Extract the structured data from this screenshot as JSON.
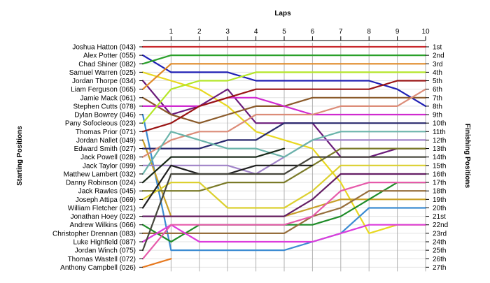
{
  "chart_data": {
    "type": "line",
    "title": "Laps",
    "xlabel": "Laps",
    "ylabel_left": "Starting Positions",
    "ylabel_right": "Finishing Positions",
    "laps": [
      0,
      1,
      2,
      3,
      4,
      5,
      6,
      7,
      8,
      9,
      10
    ],
    "lap_labels": [
      "1",
      "2",
      "3",
      "4",
      "5",
      "6",
      "7",
      "8",
      "9",
      "10"
    ],
    "finishing_labels": [
      "1st",
      "2nd",
      "3rd",
      "4th",
      "5th",
      "6th",
      "7th",
      "8th",
      "9th",
      "10th",
      "11th",
      "12th",
      "13th",
      "14th",
      "15th",
      "16th",
      "17th",
      "18th",
      "19th",
      "20th",
      "21st",
      "22nd",
      "23rd",
      "24th",
      "25th",
      "26th",
      "27th"
    ],
    "grid": true,
    "series": [
      {
        "name": "Joshua Hatton (043)",
        "color": "#c8282d",
        "positions": [
          1,
          1,
          1,
          1,
          1,
          1,
          1,
          1,
          1,
          1,
          1
        ]
      },
      {
        "name": "Alex Potter (055)",
        "color": "#1f1fb4",
        "positions": [
          2,
          4,
          4,
          4,
          5,
          5,
          5,
          5,
          5,
          6,
          8
        ]
      },
      {
        "name": "Chad Shiner (082)",
        "color": "#2aa02a",
        "positions": [
          3,
          2,
          2,
          2,
          2,
          2,
          2,
          2,
          2,
          2,
          2
        ]
      },
      {
        "name": "Samuel Warren (025)",
        "color": "#e8d820",
        "positions": [
          4,
          5,
          6,
          8,
          11,
          12,
          13,
          17,
          23,
          22,
          22
        ]
      },
      {
        "name": "Jordan Thorpe (034)",
        "color": "#6a1b7a",
        "positions": [
          5,
          9,
          8,
          6,
          10,
          10,
          10,
          14,
          14,
          13,
          13
        ]
      },
      {
        "name": "Liam Ferguson (065)",
        "color": "#e08a28",
        "positions": [
          6,
          3,
          3,
          3,
          3,
          3,
          3,
          3,
          3,
          3,
          3
        ]
      },
      {
        "name": "Jamie Mack (061)",
        "color": "#8a5a2a",
        "positions": [
          7,
          9,
          10,
          9,
          8,
          8,
          7,
          7,
          7,
          7,
          7
        ]
      },
      {
        "name": "Stephen Cutts (078)",
        "color": "#d02ad0",
        "positions": [
          8,
          8,
          8,
          7,
          7,
          8,
          9,
          9,
          9,
          9,
          9
        ]
      },
      {
        "name": "Dylan Bowrey (046)",
        "color": "#3c8cd2",
        "positions": [
          9,
          25,
          25,
          25,
          25,
          25,
          24,
          23,
          20,
          20,
          20
        ]
      },
      {
        "name": "Pany Sofocleous (023)",
        "color": "#b4e628",
        "positions": [
          10,
          6,
          5,
          5,
          4,
          4,
          4,
          4,
          4,
          4,
          4
        ]
      },
      {
        "name": "Thomas Prior (071)",
        "color": "#9a1414",
        "positions": [
          11,
          10,
          8,
          7,
          6,
          6,
          6,
          6,
          6,
          5,
          5
        ]
      },
      {
        "name": "Jordan Nallet (049)",
        "color": "#c8a028",
        "positions": [
          12,
          21,
          21,
          21,
          21,
          21,
          20,
          19,
          19,
          19,
          19
        ]
      },
      {
        "name": "Edward Smith (027)",
        "color": "#2a2a6e",
        "positions": [
          13,
          13,
          13,
          12,
          12,
          10,
          10,
          10,
          10,
          10,
          10
        ]
      },
      {
        "name": "Jack Powell (028)",
        "color": "#dc8c78",
        "positions": [
          14,
          12,
          11,
          11,
          9,
          9,
          9,
          8,
          8,
          8,
          6
        ]
      },
      {
        "name": "Jack Taylor (099)",
        "color": "#a082c8",
        "positions": [
          15,
          15,
          15,
          15,
          16,
          14,
          12,
          12,
          12,
          12,
          12
        ]
      },
      {
        "name": "Matthew Lambert (032)",
        "color": "#6ab4aa",
        "positions": [
          16,
          11,
          12,
          13,
          13,
          14,
          12,
          11,
          11,
          11,
          11
        ]
      },
      {
        "name": "Danny Robinson (024)",
        "color": "#182818",
        "positions": [
          17,
          14,
          14,
          14,
          14,
          13,
          null,
          null,
          null,
          null,
          null
        ]
      },
      {
        "name": "Jack Rawles (045)",
        "color": "#7a7a28",
        "positions": [
          18,
          18,
          18,
          17,
          17,
          17,
          15,
          13,
          13,
          13,
          13
        ]
      },
      {
        "name": "Joseph Attipa (069)",
        "color": "#dcd030",
        "positions": [
          19,
          17,
          17,
          20,
          20,
          20,
          18,
          15,
          15,
          15,
          15
        ]
      },
      {
        "name": "William Fletcher (021)",
        "color": "#1e1e1e",
        "positions": [
          20,
          15,
          16,
          16,
          15,
          15,
          15,
          null,
          null,
          null,
          null
        ]
      },
      {
        "name": "Jonathan Hoey (022)",
        "color": "#641e64",
        "positions": [
          21,
          21,
          21,
          21,
          21,
          21,
          19,
          16,
          16,
          16,
          16
        ]
      },
      {
        "name": "Andrew Wilkins (066)",
        "color": "#1e8c28",
        "positions": [
          22,
          24,
          22,
          22,
          22,
          22,
          22,
          21,
          19,
          17,
          17
        ]
      },
      {
        "name": "Christopher Drennan (083)",
        "color": "#966e3c",
        "positions": [
          23,
          23,
          23,
          23,
          23,
          23,
          21,
          20,
          18,
          18,
          18
        ]
      },
      {
        "name": "Luke Highfield (087)",
        "color": "#dc3cdc",
        "positions": [
          24,
          22,
          24,
          24,
          24,
          24,
          24,
          23,
          22,
          22,
          22
        ]
      },
      {
        "name": "Jordan Winch (075)",
        "color": "#46463c",
        "positions": [
          25,
          16,
          16,
          16,
          16,
          16,
          14,
          14,
          14,
          14,
          14
        ]
      },
      {
        "name": "Thomas Wastell (072)",
        "color": "#e65aaa",
        "positions": [
          26,
          22,
          22,
          22,
          22,
          22,
          21,
          18,
          17,
          17,
          17
        ]
      },
      {
        "name": "Anthony Campbell (026)",
        "color": "#e6781e",
        "positions": [
          27,
          26,
          null,
          null,
          null,
          null,
          null,
          null,
          null,
          null,
          null
        ]
      }
    ]
  }
}
